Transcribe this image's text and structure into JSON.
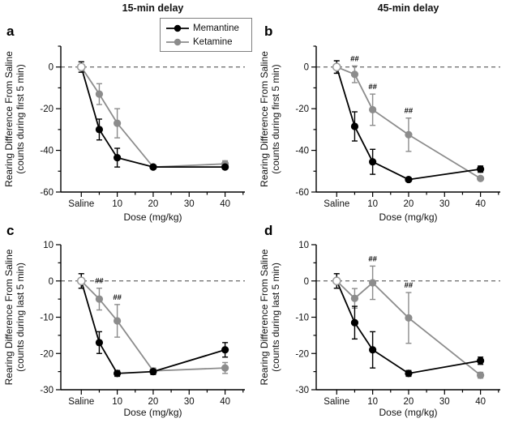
{
  "figure": {
    "background": "#ffffff",
    "column_titles": [
      {
        "label": "15-min delay"
      },
      {
        "label": "45-min delay"
      }
    ],
    "legend": {
      "items": [
        {
          "label": "Memantine",
          "color": "#000000"
        },
        {
          "label": "Ketamine",
          "color": "#8c8c8c"
        }
      ]
    },
    "colors": {
      "memantine": "#000000",
      "ketamine": "#8c8c8c",
      "saline_marker_stroke": "#9c9c9c",
      "axis": "#000000",
      "zero_line": "#404040"
    },
    "sig_symbol": "##"
  },
  "chart_data": [
    {
      "type": "line",
      "panel_letter": "a",
      "column_title": "15-min delay",
      "xlabel": "Dose (mg/kg)",
      "ylabel_lines": [
        "Rearing Difference From Saline",
        "(counts during first 5 min)"
      ],
      "xticks": [
        {
          "value": 0,
          "label": "Saline"
        },
        {
          "value": 10,
          "label": "10"
        },
        {
          "value": 20,
          "label": "20"
        },
        {
          "value": 30,
          "label": "30"
        },
        {
          "value": 40,
          "label": "40"
        }
      ],
      "x_minor": [
        5,
        15,
        25,
        35,
        45
      ],
      "x_doses": [
        0,
        5,
        10,
        20,
        40
      ],
      "ylim": [
        -60,
        10
      ],
      "yticks": [
        0,
        -20,
        -40,
        -60
      ],
      "y_minor": [
        10,
        -10,
        -30,
        -50
      ],
      "zero_line": true,
      "saline_open_marker": true,
      "series": [
        {
          "name": "Ketamine",
          "color": "#8c8c8c",
          "marker": "filled-circle",
          "values": [
            0,
            -13,
            -27,
            -48,
            -46.5
          ],
          "errors": [
            2.5,
            5,
            7,
            0.8,
            1.5
          ],
          "sig_indices": []
        },
        {
          "name": "Memantine",
          "color": "#000000",
          "marker": "filled-circle",
          "values": [
            0,
            -30,
            -43.5,
            -48,
            -48
          ],
          "errors": [
            2.5,
            5,
            4.5,
            0.8,
            1
          ],
          "sig_indices": []
        }
      ]
    },
    {
      "type": "line",
      "panel_letter": "b",
      "column_title": "45-min delay",
      "xlabel": "Dose (mg/kg)",
      "ylabel_lines": [
        "Rearing Difference From Saline",
        "(counts during first 5 min)"
      ],
      "xticks": [
        {
          "value": 0,
          "label": "Saline"
        },
        {
          "value": 10,
          "label": "10"
        },
        {
          "value": 20,
          "label": "20"
        },
        {
          "value": 30,
          "label": "30"
        },
        {
          "value": 40,
          "label": "40"
        }
      ],
      "x_minor": [
        5,
        15,
        25,
        35,
        45
      ],
      "x_doses": [
        0,
        5,
        10,
        20,
        40
      ],
      "ylim": [
        -60,
        10
      ],
      "yticks": [
        0,
        -20,
        -40,
        -60
      ],
      "y_minor": [
        10,
        -10,
        -30,
        -50
      ],
      "zero_line": true,
      "saline_open_marker": true,
      "series": [
        {
          "name": "Ketamine",
          "color": "#8c8c8c",
          "marker": "filled-circle",
          "values": [
            0,
            -3.5,
            -20.5,
            -32.5,
            -53.5
          ],
          "errors": [
            3,
            4,
            7.5,
            8,
            0.8
          ],
          "sig_indices": [
            1,
            2,
            3
          ]
        },
        {
          "name": "Memantine",
          "color": "#000000",
          "marker": "filled-circle",
          "values": [
            0,
            -28.5,
            -45.5,
            -54,
            -49
          ],
          "errors": [
            3,
            7,
            6,
            0.8,
            1.5
          ],
          "sig_indices": []
        }
      ]
    },
    {
      "type": "line",
      "panel_letter": "c",
      "column_title": "15-min delay",
      "xlabel": "Dose (mg/kg)",
      "ylabel_lines": [
        "Rearing Difference From Saline",
        "(counts during last 5 min)"
      ],
      "xticks": [
        {
          "value": 0,
          "label": "Saline"
        },
        {
          "value": 10,
          "label": "10"
        },
        {
          "value": 20,
          "label": "20"
        },
        {
          "value": 30,
          "label": "30"
        },
        {
          "value": 40,
          "label": "40"
        }
      ],
      "x_minor": [
        5,
        15,
        25,
        35,
        45
      ],
      "x_doses": [
        0,
        5,
        10,
        20,
        40
      ],
      "ylim": [
        -30,
        10
      ],
      "yticks": [
        10,
        0,
        -10,
        -20,
        -30
      ],
      "y_minor": [
        5,
        -5,
        -15,
        -25
      ],
      "zero_line": true,
      "saline_open_marker": true,
      "series": [
        {
          "name": "Ketamine",
          "color": "#8c8c8c",
          "marker": "filled-circle",
          "values": [
            0,
            -5,
            -11,
            -24.8,
            -24
          ],
          "errors": [
            2,
            3,
            4.5,
            0.8,
            1.5
          ],
          "sig_indices": [
            1,
            2
          ]
        },
        {
          "name": "Memantine",
          "color": "#000000",
          "marker": "filled-circle",
          "values": [
            0,
            -17,
            -25.5,
            -25,
            -19
          ],
          "errors": [
            2,
            3,
            0.8,
            0.8,
            2
          ],
          "sig_indices": []
        }
      ]
    },
    {
      "type": "line",
      "panel_letter": "d",
      "column_title": "45-min delay",
      "xlabel": "Dose (mg/kg)",
      "ylabel_lines": [
        "Rearing Difference From Saline",
        "(counts during last 5 min)"
      ],
      "xticks": [
        {
          "value": 0,
          "label": "Saline"
        },
        {
          "value": 10,
          "label": "10"
        },
        {
          "value": 20,
          "label": "20"
        },
        {
          "value": 30,
          "label": "30"
        },
        {
          "value": 40,
          "label": "40"
        }
      ],
      "x_minor": [
        5,
        15,
        25,
        35,
        45
      ],
      "x_doses": [
        0,
        5,
        10,
        20,
        40
      ],
      "ylim": [
        -30,
        10
      ],
      "yticks": [
        10,
        0,
        -10,
        -20,
        -30
      ],
      "y_minor": [
        5,
        -5,
        -15,
        -25
      ],
      "zero_line": true,
      "saline_open_marker": true,
      "series": [
        {
          "name": "Ketamine",
          "color": "#8c8c8c",
          "marker": "filled-circle",
          "values": [
            0,
            -4.8,
            -0.5,
            -10.2,
            -26
          ],
          "errors": [
            2,
            2.7,
            4.6,
            7,
            0.8
          ],
          "sig_indices": [
            2,
            3
          ]
        },
        {
          "name": "Memantine",
          "color": "#000000",
          "marker": "filled-circle",
          "values": [
            0,
            -11.5,
            -19,
            -25.5,
            -22
          ],
          "errors": [
            2,
            4.5,
            5,
            0.8,
            1
          ],
          "sig_indices": []
        }
      ]
    }
  ]
}
